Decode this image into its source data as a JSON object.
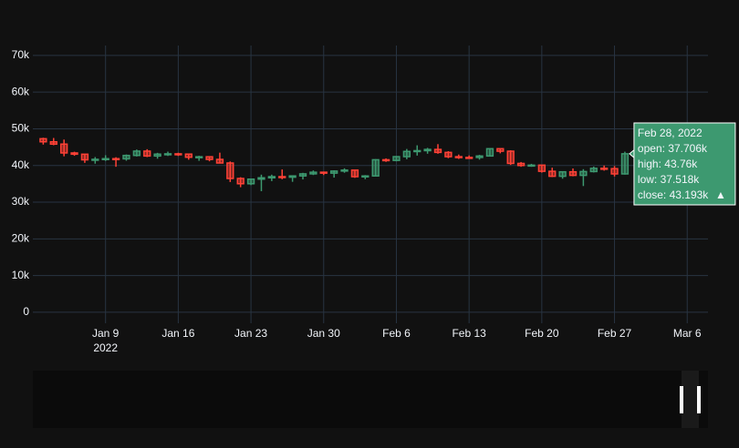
{
  "chart_data": {
    "type": "candlestick",
    "x": [
      "2022-01-03",
      "2022-01-04",
      "2022-01-05",
      "2022-01-06",
      "2022-01-07",
      "2022-01-08",
      "2022-01-09",
      "2022-01-10",
      "2022-01-11",
      "2022-01-12",
      "2022-01-13",
      "2022-01-14",
      "2022-01-15",
      "2022-01-16",
      "2022-01-17",
      "2022-01-18",
      "2022-01-19",
      "2022-01-20",
      "2022-01-21",
      "2022-01-22",
      "2022-01-23",
      "2022-01-24",
      "2022-01-25",
      "2022-01-26",
      "2022-01-27",
      "2022-01-28",
      "2022-01-29",
      "2022-01-30",
      "2022-01-31",
      "2022-02-01",
      "2022-02-02",
      "2022-02-03",
      "2022-02-04",
      "2022-02-05",
      "2022-02-06",
      "2022-02-07",
      "2022-02-08",
      "2022-02-09",
      "2022-02-10",
      "2022-02-11",
      "2022-02-12",
      "2022-02-13",
      "2022-02-14",
      "2022-02-15",
      "2022-02-16",
      "2022-02-17",
      "2022-02-18",
      "2022-02-19",
      "2022-02-20",
      "2022-02-21",
      "2022-02-22",
      "2022-02-23",
      "2022-02-24",
      "2022-02-25",
      "2022-02-26",
      "2022-02-27",
      "2022-02-28"
    ],
    "open": [
      47300,
      46460,
      45830,
      43420,
      43080,
      41550,
      41680,
      41860,
      41820,
      42740,
      43920,
      42590,
      43100,
      43180,
      43110,
      42250,
      42380,
      41660,
      40680,
      36460,
      35030,
      36280,
      36650,
      36960,
      36810,
      37160,
      37720,
      38170,
      37920,
      38480,
      38740,
      36950,
      37150,
      41570,
      41380,
      42410,
      43840,
      44040,
      44380,
      43570,
      42400,
      42200,
      42190,
      42590,
      44580,
      43900,
      40570,
      40000,
      40100,
      38420,
      37060,
      38280,
      37310,
      38350,
      39230,
      39140,
      37706
    ],
    "high": [
      47570,
      47500,
      47070,
      43750,
      43130,
      42300,
      42790,
      42250,
      43000,
      44350,
      44440,
      43450,
      43780,
      43470,
      43180,
      42650,
      42550,
      43500,
      41100,
      36800,
      36440,
      37500,
      37500,
      38920,
      37200,
      38000,
      38650,
      38350,
      38700,
      39230,
      38820,
      37380,
      41730,
      41940,
      42600,
      44500,
      45500,
      44800,
      45820,
      43900,
      42990,
      42750,
      42900,
      44700,
      44580,
      44150,
      40950,
      40450,
      40150,
      39400,
      38400,
      39200,
      39000,
      39700,
      40000,
      39850,
      43760
    ],
    "low": [
      45700,
      45520,
      42500,
      42650,
      40720,
      40500,
      41250,
      39650,
      41300,
      42450,
      42300,
      41850,
      42600,
      42600,
      41580,
      41280,
      41150,
      40550,
      35500,
      34080,
      34650,
      33000,
      35750,
      36250,
      35550,
      36200,
      37400,
      37400,
      36700,
      38020,
      36640,
      36270,
      37050,
      40990,
      41140,
      41700,
      42700,
      43200,
      43200,
      42000,
      41800,
      41880,
      41600,
      42440,
      43320,
      40150,
      39650,
      39650,
      38060,
      36850,
      36400,
      37060,
      34400,
      38100,
      38600,
      37000,
      37518
    ],
    "close": [
      46460,
      45830,
      43420,
      43080,
      41550,
      41680,
      41860,
      41820,
      42740,
      43920,
      42590,
      43100,
      43180,
      43110,
      42250,
      42380,
      41660,
      40680,
      36460,
      35030,
      36280,
      36650,
      36960,
      36810,
      37160,
      37720,
      38170,
      37920,
      38480,
      38740,
      36950,
      37150,
      41570,
      41380,
      42410,
      43840,
      44040,
      44380,
      43570,
      42400,
      42200,
      42190,
      42590,
      44580,
      43900,
      40570,
      40000,
      40100,
      38420,
      37060,
      38280,
      37310,
      38350,
      39230,
      39140,
      37706,
      43193
    ],
    "increasing_color": "#3D9970",
    "decreasing_color": "#FF4136",
    "xlim": [
      "2022-01-02",
      "2022-03-08"
    ],
    "xticks": [
      {
        "value": "2022-01-09",
        "label": "Jan 9"
      },
      {
        "value": "2022-01-16",
        "label": "Jan 16"
      },
      {
        "value": "2022-01-23",
        "label": "Jan 23"
      },
      {
        "value": "2022-01-30",
        "label": "Jan 30"
      },
      {
        "value": "2022-02-06",
        "label": "Feb 6"
      },
      {
        "value": "2022-02-13",
        "label": "Feb 13"
      },
      {
        "value": "2022-02-20",
        "label": "Feb 20"
      },
      {
        "value": "2022-02-27",
        "label": "Feb 27"
      },
      {
        "value": "2022-03-06",
        "label": "Mar 6"
      }
    ],
    "xtick_year": "2022",
    "ylim": [
      -3000,
      72700
    ],
    "yticks": [
      0,
      {
        "value": 10000,
        "label": "10k"
      },
      {
        "value": 20000,
        "label": "20k"
      },
      {
        "value": 30000,
        "label": "30k"
      },
      {
        "value": 40000,
        "label": "40k"
      },
      {
        "value": 50000,
        "label": "50k"
      },
      {
        "value": 60000,
        "label": "60k"
      },
      {
        "value": 70000,
        "label": "70k"
      }
    ],
    "grid": true,
    "hover": {
      "date": "Feb 28, 2022",
      "lines": [
        "open: 37.706k",
        "high: 43.76k",
        "low: 37.518k",
        "close: 43.193k"
      ],
      "symbol": "▲"
    }
  }
}
